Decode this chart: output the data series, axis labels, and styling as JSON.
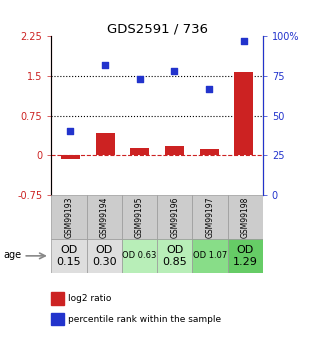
{
  "title": "GDS2591 / 736",
  "samples": [
    "GSM99193",
    "GSM99194",
    "GSM99195",
    "GSM99196",
    "GSM99197",
    "GSM99198"
  ],
  "log2_ratio": [
    -0.08,
    0.42,
    0.13,
    0.17,
    0.12,
    1.58
  ],
  "percentile_rank": [
    40,
    82,
    73,
    78,
    67,
    97
  ],
  "ylim_left": [
    -0.75,
    2.25
  ],
  "ylim_right": [
    0,
    100
  ],
  "yticks_left": [
    -0.75,
    0,
    0.75,
    1.5,
    2.25
  ],
  "yticks_right": [
    0,
    25,
    50,
    75,
    100
  ],
  "ytick_labels_left": [
    "-0.75",
    "0",
    "0.75",
    "1.5",
    "2.25"
  ],
  "ytick_labels_right": [
    "0",
    "25",
    "50",
    "75",
    "100%"
  ],
  "hlines": [
    0.75,
    1.5
  ],
  "bar_color": "#cc2222",
  "scatter_color": "#2233cc",
  "zero_line_color": "#cc2222",
  "hline_color": "#000000",
  "age_labels": [
    "OD\n0.15",
    "OD\n0.30",
    "OD 0.63",
    "OD\n0.85",
    "OD 1.07",
    "OD\n1.29"
  ],
  "age_bg_colors": [
    "#dedede",
    "#dedede",
    "#b8eeb8",
    "#b8eeb8",
    "#88dd88",
    "#66cc66"
  ],
  "age_large_idx": [
    0,
    1,
    3,
    5
  ],
  "age_small_idx": [
    2,
    4
  ],
  "gsm_bg_color": "#cccccc",
  "legend_red": "log2 ratio",
  "legend_blue": "percentile rank within the sample"
}
